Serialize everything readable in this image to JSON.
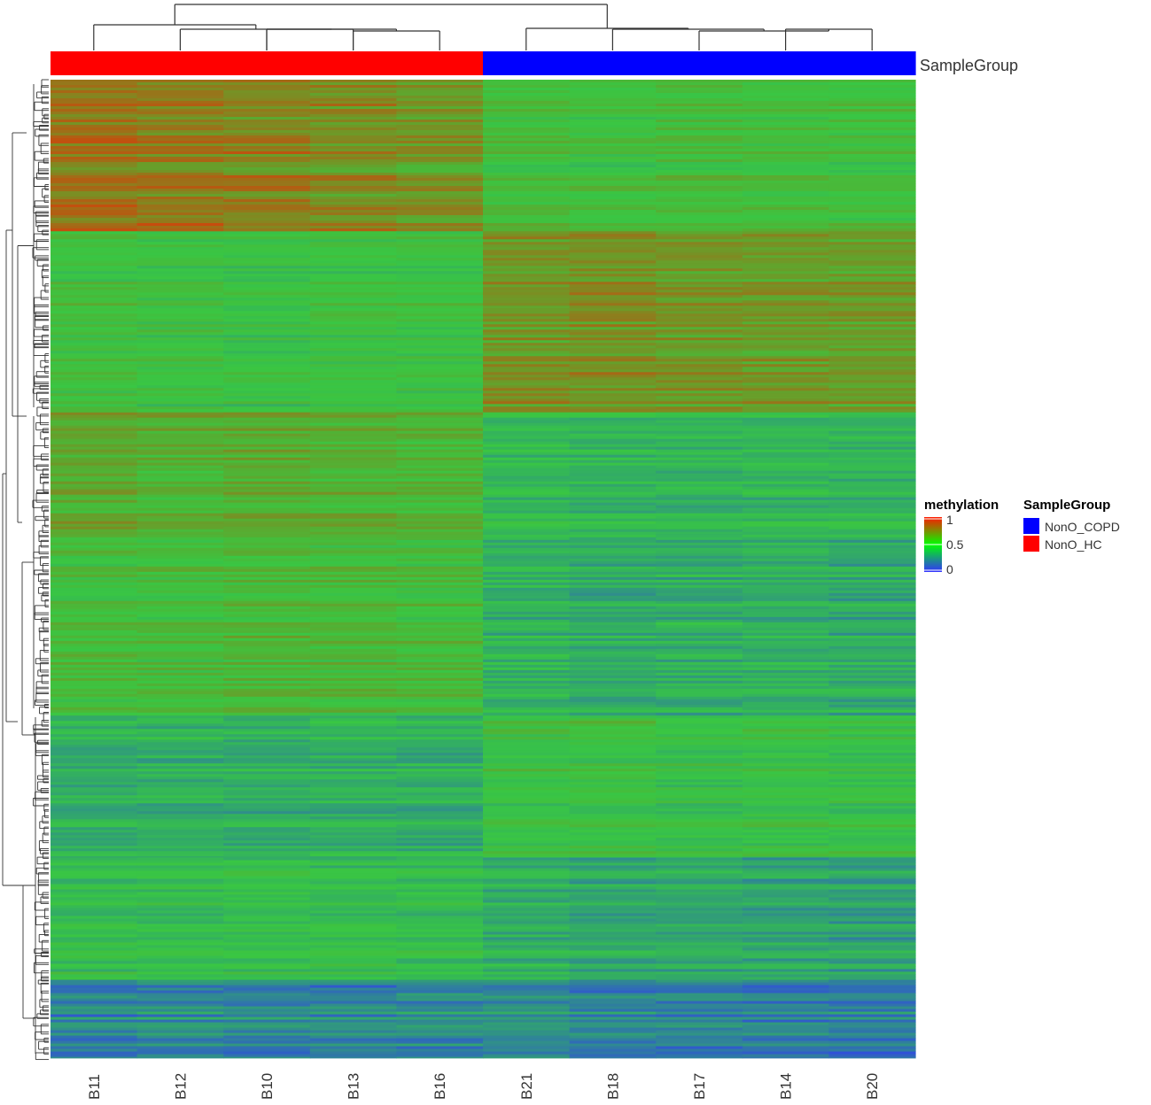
{
  "chart_data": {
    "type": "heatmap",
    "columns": [
      "B11",
      "B12",
      "B10",
      "B13",
      "B16",
      "B21",
      "B18",
      "B17",
      "B14",
      "B20"
    ],
    "annotation": {
      "name": "SampleGroup",
      "groups": [
        "NonO_HC",
        "NonO_HC",
        "NonO_HC",
        "NonO_HC",
        "NonO_HC",
        "NonO_COPD",
        "NonO_COPD",
        "NonO_COPD",
        "NonO_COPD",
        "NonO_COPD"
      ]
    },
    "color_legend": {
      "title": "methylation",
      "ticks": [
        "1",
        "0.5",
        "0"
      ],
      "range": [
        0,
        1
      ],
      "colors": {
        "low": "#3232ff",
        "mid": "#00ff00",
        "high": "#ff1a00"
      }
    },
    "group_legend": {
      "title": "SampleGroup",
      "items": [
        {
          "label": "NonO_COPD",
          "color": "#0000ff"
        },
        {
          "label": "NonO_HC",
          "color": "#ff0000"
        }
      ]
    },
    "row_blocks": [
      {
        "fraction": 0.155,
        "values": [
          0.8,
          0.78,
          0.76,
          0.74,
          0.7,
          0.55,
          0.52,
          0.55,
          0.54,
          0.53
        ]
      },
      {
        "fraction": 0.185,
        "values": [
          0.52,
          0.5,
          0.48,
          0.5,
          0.5,
          0.7,
          0.72,
          0.7,
          0.68,
          0.68
        ]
      },
      {
        "fraction": 0.125,
        "values": [
          0.66,
          0.62,
          0.64,
          0.62,
          0.6,
          0.42,
          0.4,
          0.4,
          0.4,
          0.4
        ]
      },
      {
        "fraction": 0.185,
        "values": [
          0.55,
          0.55,
          0.58,
          0.56,
          0.55,
          0.38,
          0.34,
          0.36,
          0.36,
          0.34
        ]
      },
      {
        "fraction": 0.145,
        "values": [
          0.36,
          0.38,
          0.36,
          0.38,
          0.36,
          0.5,
          0.52,
          0.48,
          0.5,
          0.48
        ]
      },
      {
        "fraction": 0.125,
        "values": [
          0.45,
          0.45,
          0.46,
          0.45,
          0.44,
          0.36,
          0.33,
          0.34,
          0.33,
          0.31
        ]
      },
      {
        "fraction": 0.08,
        "values": [
          0.22,
          0.24,
          0.22,
          0.22,
          0.24,
          0.24,
          0.22,
          0.22,
          0.21,
          0.2
        ]
      }
    ]
  }
}
